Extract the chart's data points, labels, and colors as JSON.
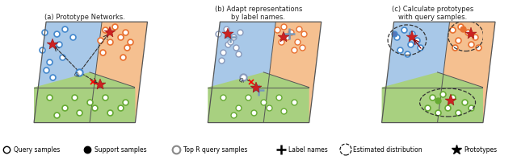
{
  "fig_width": 6.4,
  "fig_height": 2.09,
  "dpi": 100,
  "background": "#ffffff",
  "panel_titles": [
    "(a) Prototype Networks.",
    "(b) Adapt representations\nby label names.",
    "(c) Calculate prototypes\nwith query samples."
  ],
  "colors": {
    "blue_region": "#a8c8e8",
    "orange_region": "#f5c090",
    "green_region": "#a8d080",
    "blue_circle": "#4488cc",
    "orange_circle": "#e87030",
    "green_circle": "#66aa33",
    "white_fill": "#ffffff",
    "red_star": "#cc2222",
    "border": "#555555",
    "dashed": "#333333",
    "gray_blue": "#8899bb",
    "gray_cross": "#6688aa"
  }
}
